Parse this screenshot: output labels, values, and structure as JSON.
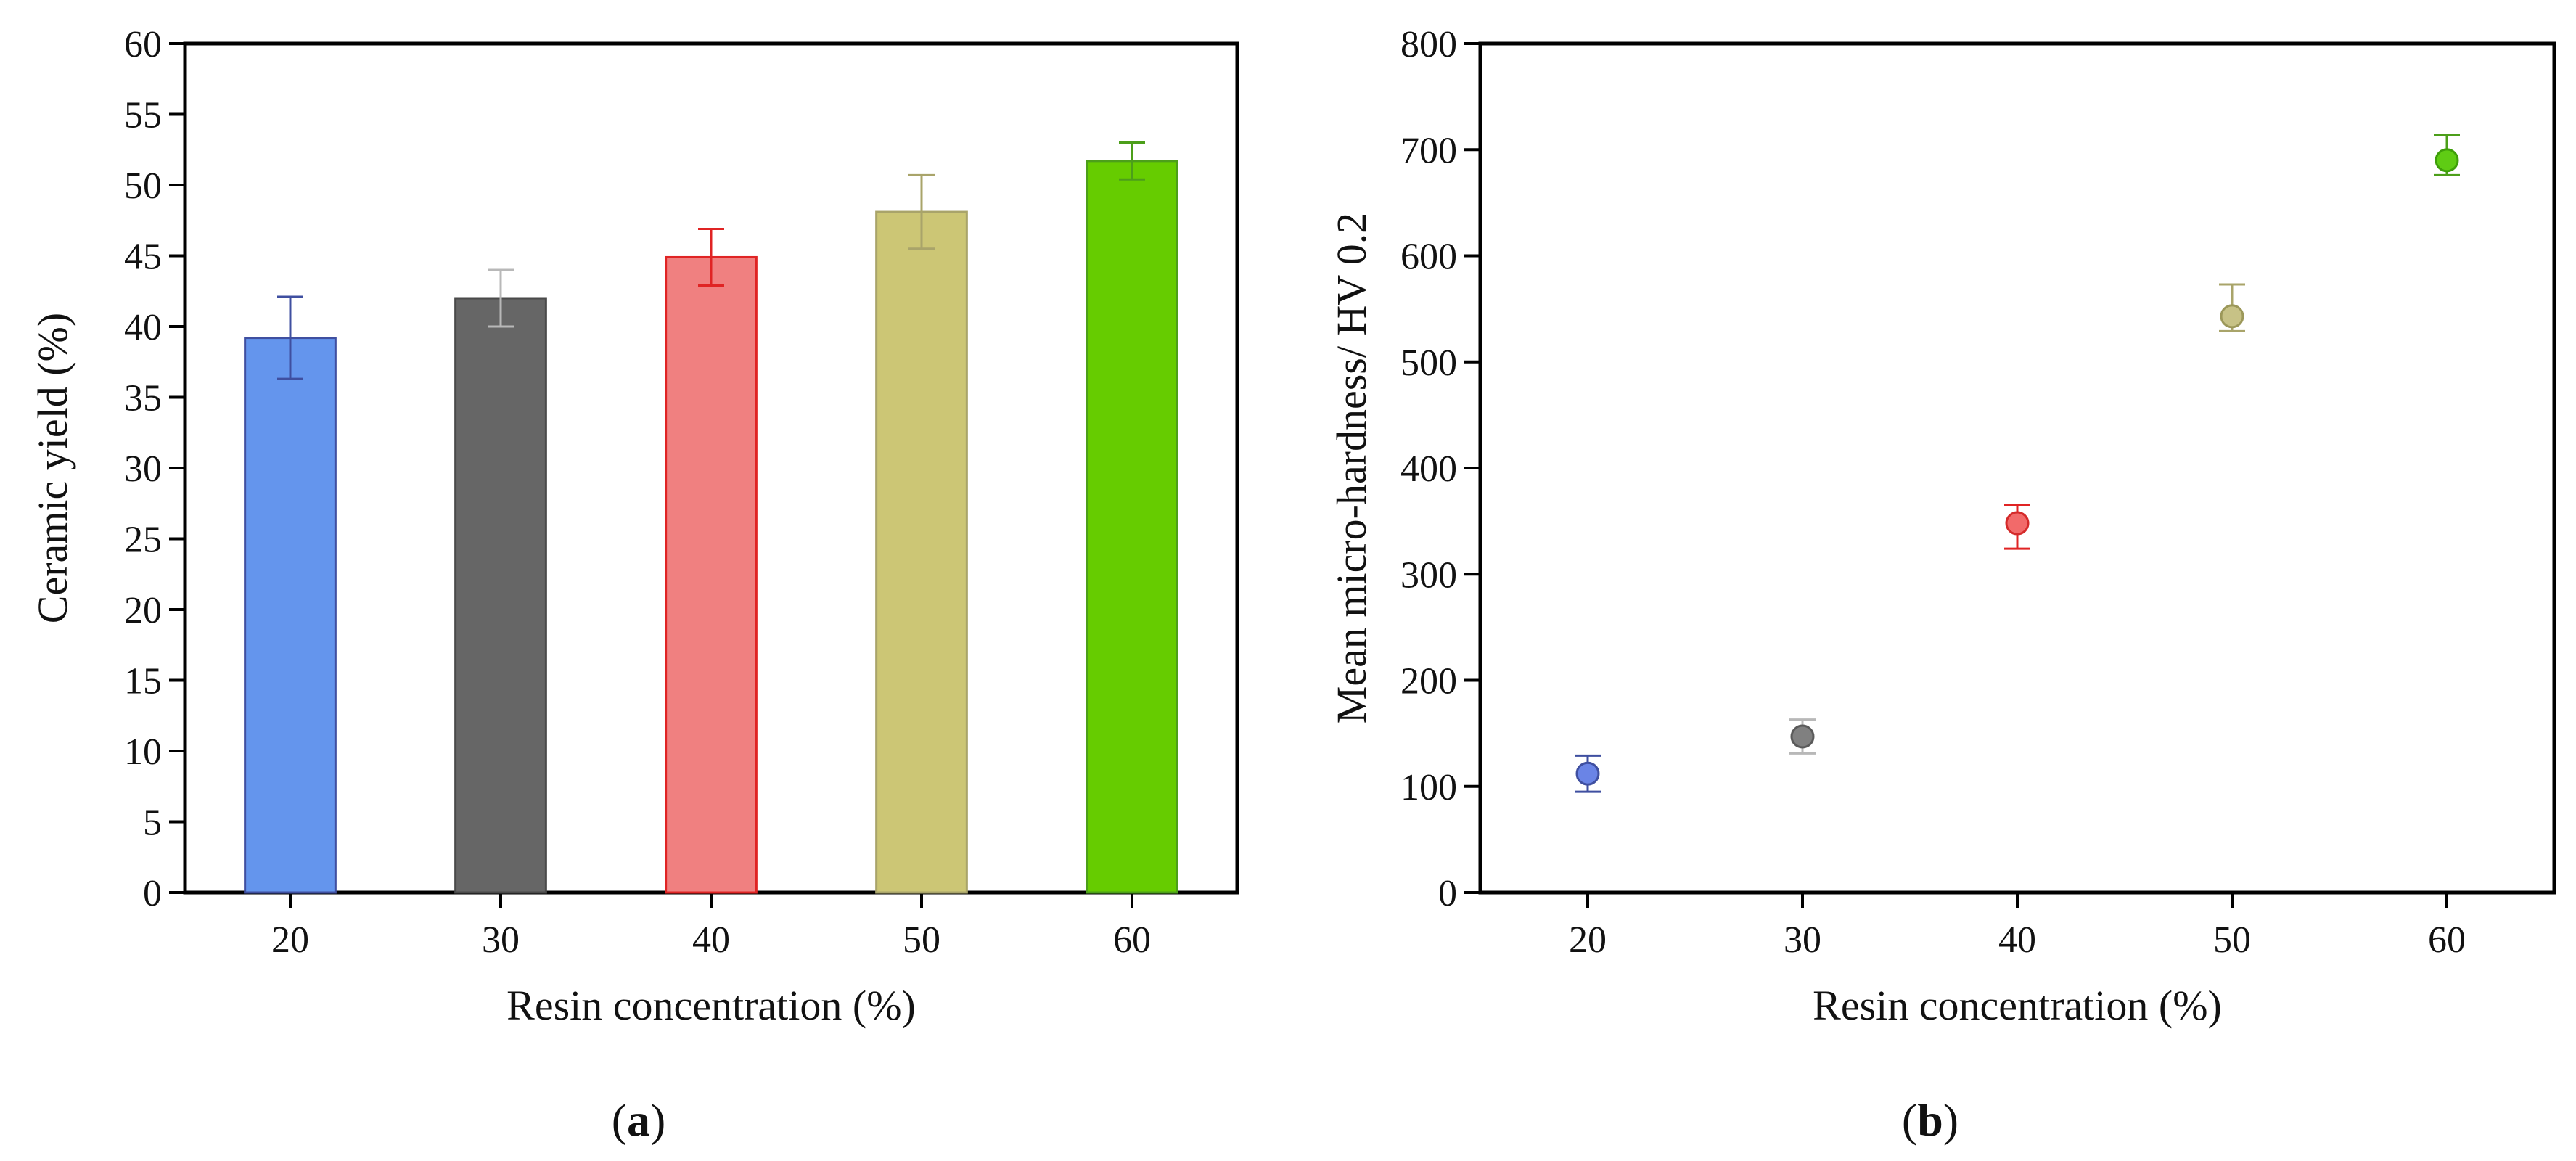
{
  "figure": {
    "panel_a_label": {
      "open": "(",
      "letter": "a",
      "close": ")"
    },
    "panel_b_label": {
      "open": "(",
      "letter": "b",
      "close": ")"
    }
  },
  "chart_data": [
    {
      "type": "bar",
      "panel": "a",
      "title": "",
      "xlabel": "Resin concentration (%)",
      "ylabel": "Ceramic yield (%)",
      "categories": [
        "20",
        "30",
        "40",
        "50",
        "60"
      ],
      "values": [
        39.2,
        42.0,
        44.9,
        48.1,
        51.7
      ],
      "errors": [
        2.9,
        2.0,
        2.0,
        2.6,
        1.3
      ],
      "colors": [
        "#6495ED",
        "#666666",
        "#F08080",
        "#CCC675",
        "#66CC00"
      ],
      "edge_colors": [
        "#3F4FA0",
        "#4A4A4A",
        "#E02424",
        "#A9A46A",
        "#4C9F1A"
      ],
      "error_colors": [
        "#3F4FA0",
        "#B8B8B8",
        "#E02424",
        "#A9A46A",
        "#4C9F1A"
      ],
      "ylim": [
        0,
        60
      ],
      "yticks": [
        "0",
        "5",
        "10",
        "15",
        "20",
        "25",
        "30",
        "35",
        "40",
        "45",
        "50",
        "55",
        "60"
      ],
      "grid": false
    },
    {
      "type": "scatter",
      "panel": "b",
      "title": "",
      "xlabel": "Resin concentration (%)",
      "ylabel": "Mean micro-hardness/ HV 0.2",
      "x": [
        20,
        30,
        40,
        50,
        60
      ],
      "xticks": [
        "20",
        "30",
        "40",
        "50",
        "60"
      ],
      "xlim": [
        15,
        65
      ],
      "values": [
        112,
        147,
        348,
        543,
        690
      ],
      "err_plus": [
        17,
        16,
        17,
        30,
        24
      ],
      "err_minus": [
        17,
        16,
        24,
        14,
        14
      ],
      "colors": [
        "#6A84E6",
        "#808080",
        "#F26A6A",
        "#C7C286",
        "#5FCC14"
      ],
      "edge_colors": [
        "#3F4FA0",
        "#5A5A5A",
        "#D42A2A",
        "#9C985A",
        "#3E9F0A"
      ],
      "error_colors": [
        "#3F4FA0",
        "#B8B8B8",
        "#E02424",
        "#A9A46A",
        "#4C9F1A"
      ],
      "ylim": [
        0,
        800
      ],
      "yticks": [
        "0",
        "100",
        "200",
        "300",
        "400",
        "500",
        "600",
        "700",
        "800"
      ],
      "grid": false
    }
  ]
}
